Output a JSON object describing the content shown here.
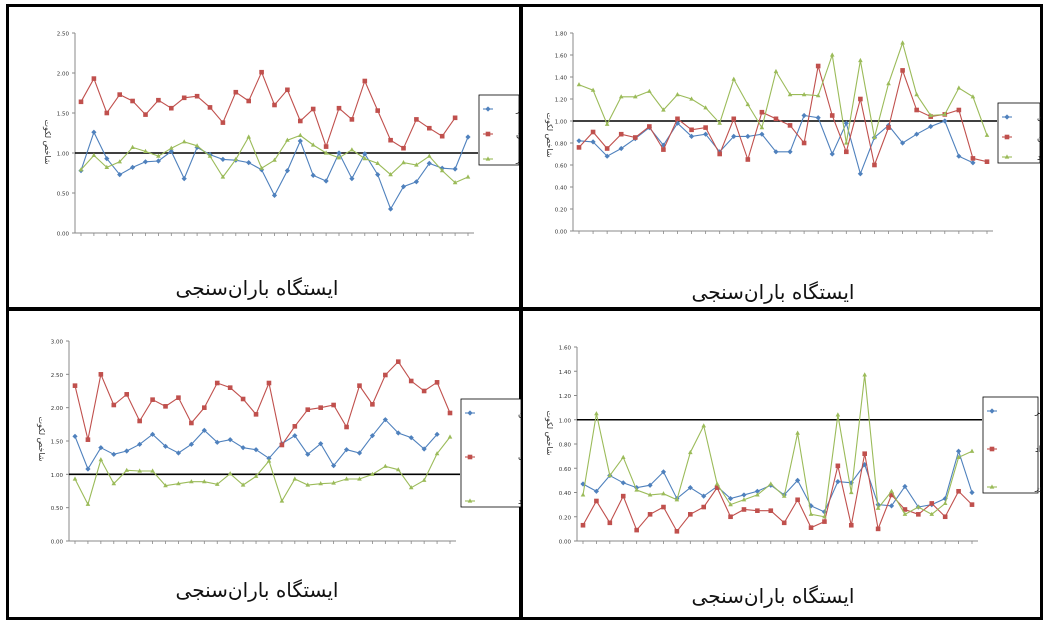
{
  "chart_data": [
    {
      "type": "line",
      "ylabel": "شاخص لکوت",
      "xlabel": "ایستگاه باران‌سنجی",
      "ylim": [
        0,
        2.5
      ],
      "yticks": [
        "0.00",
        "0.50",
        "1.00",
        "1.50",
        "2.00",
        "2.50"
      ],
      "reference_line": 1.0,
      "legend_position": "right",
      "series": [
        {
          "name": "مهر",
          "color": "#4f81bd",
          "values": [
            0.78,
            1.26,
            0.93,
            0.73,
            0.82,
            0.89,
            0.9,
            1.02,
            0.68,
            1.07,
            0.98,
            0.92,
            0.91,
            0.88,
            0.79,
            0.47,
            0.78,
            1.15,
            0.72,
            0.65,
            1.0,
            0.68,
            0.99,
            0.73,
            0.3,
            0.58,
            0.64,
            0.87,
            0.81,
            0.8,
            1.2
          ]
        },
        {
          "name": "آبان",
          "color": "#c0504d",
          "values": [
            1.64,
            1.93,
            1.5,
            1.73,
            1.65,
            1.48,
            1.66,
            1.56,
            1.69,
            1.71,
            1.57,
            1.38,
            1.76,
            1.65,
            2.01,
            1.6,
            1.79,
            1.4,
            1.55,
            1.08,
            1.56,
            1.42,
            1.9,
            1.53,
            1.16,
            1.06,
            1.42,
            1.31,
            1.21,
            1.44,
            null
          ]
        },
        {
          "name": "آذر",
          "color": "#9bbb59",
          "values": [
            0.79,
            0.97,
            0.82,
            0.89,
            1.07,
            1.02,
            0.96,
            1.06,
            1.14,
            1.09,
            0.96,
            0.7,
            0.92,
            1.2,
            0.81,
            0.91,
            1.16,
            1.22,
            1.1,
            1.0,
            0.94,
            1.04,
            0.93,
            0.87,
            0.73,
            0.88,
            0.85,
            0.96,
            0.78,
            0.63,
            0.7
          ]
        }
      ]
    },
    {
      "type": "line",
      "ylabel": "شاخص لکوت",
      "xlabel": "ایستگاه باران‌سنجی",
      "ylim": [
        0,
        1.8
      ],
      "yticks": [
        "0.00",
        "0.20",
        "0.40",
        "0.60",
        "0.80",
        "1.00",
        "1.20",
        "1.40",
        "1.60",
        "1.80"
      ],
      "reference_line": 1.0,
      "legend_position": "right",
      "series": [
        {
          "name": "دی",
          "color": "#4f81bd",
          "values": [
            0.82,
            0.81,
            0.68,
            0.75,
            0.84,
            0.94,
            0.78,
            0.98,
            0.86,
            0.88,
            0.72,
            0.86,
            0.86,
            0.88,
            0.72,
            0.72,
            1.05,
            1.03,
            0.7,
            0.98,
            0.52,
            0.85,
            0.96,
            0.8,
            0.88,
            0.95,
            1.0,
            0.68,
            0.62
          ]
        },
        {
          "name": "بهمن",
          "color": "#c0504d",
          "values": [
            0.76,
            0.9,
            0.75,
            0.88,
            0.85,
            0.95,
            0.74,
            1.02,
            0.92,
            0.94,
            0.7,
            1.02,
            0.65,
            1.08,
            1.02,
            0.96,
            0.8,
            1.5,
            1.05,
            0.72,
            1.2,
            0.6,
            0.94,
            1.46,
            1.1,
            1.04,
            1.06,
            1.1,
            0.66,
            0.63
          ]
        },
        {
          "name": "اسفند",
          "color": "#9bbb59",
          "values": [
            1.33,
            1.28,
            0.97,
            1.22,
            1.22,
            1.27,
            1.1,
            1.24,
            1.2,
            1.12,
            0.98,
            1.38,
            1.15,
            0.94,
            1.45,
            1.24,
            1.24,
            1.23,
            1.6,
            0.8,
            1.55,
            0.85,
            1.34,
            1.71,
            1.24,
            1.05,
            1.06,
            1.3,
            1.22,
            0.87
          ]
        }
      ]
    },
    {
      "type": "line",
      "ylabel": "شاخص لکوت",
      "xlabel": "ایستگاه باران‌سنجی",
      "ylim": [
        0,
        3.0
      ],
      "yticks": [
        "0.00",
        "0.50",
        "1.00",
        "1.50",
        "2.00",
        "2.50",
        "3.00"
      ],
      "reference_line": 1.0,
      "legend_position": "right",
      "series": [
        {
          "name": "فروردین",
          "color": "#4f81bd",
          "values": [
            1.57,
            1.08,
            1.4,
            1.3,
            1.35,
            1.45,
            1.6,
            1.42,
            1.32,
            1.45,
            1.66,
            1.48,
            1.52,
            1.4,
            1.37,
            1.24,
            1.46,
            1.58,
            1.3,
            1.46,
            1.13,
            1.37,
            1.32,
            1.58,
            1.82,
            1.62,
            1.55,
            1.38,
            1.6
          ]
        },
        {
          "name": "اردیبهشت",
          "color": "#c0504d",
          "values": [
            2.33,
            1.52,
            2.5,
            2.04,
            2.2,
            1.8,
            2.12,
            2.02,
            2.15,
            1.77,
            2.0,
            2.37,
            2.3,
            2.13,
            1.9,
            2.37,
            1.44,
            1.72,
            1.97,
            2.0,
            2.04,
            1.71,
            2.33,
            2.05,
            2.49,
            2.69,
            2.4,
            2.25,
            2.38,
            1.92
          ]
        },
        {
          "name": "خرداد",
          "color": "#9bbb59",
          "values": [
            0.93,
            0.55,
            1.22,
            0.86,
            1.06,
            1.05,
            1.05,
            0.83,
            0.86,
            0.89,
            0.89,
            0.85,
            1.01,
            0.84,
            0.97,
            1.2,
            0.6,
            0.93,
            0.84,
            0.86,
            0.87,
            0.93,
            0.93,
            1.0,
            1.12,
            1.07,
            0.8,
            0.91,
            1.31,
            1.56
          ]
        }
      ]
    },
    {
      "type": "line",
      "ylabel": "شاخص لکوت",
      "xlabel": "ایستگاه باران‌سنجی",
      "ylim": [
        0,
        1.6
      ],
      "yticks": [
        "0.00",
        "0.20",
        "0.40",
        "0.60",
        "0.80",
        "1.00",
        "1.20",
        "1.40",
        "1.60"
      ],
      "reference_line": 1.0,
      "legend_position": "right",
      "series": [
        {
          "name": "تیر",
          "color": "#4f81bd",
          "values": [
            0.47,
            0.41,
            0.54,
            0.48,
            0.44,
            0.46,
            0.57,
            0.35,
            0.44,
            0.37,
            0.45,
            0.35,
            0.38,
            0.41,
            0.46,
            0.38,
            0.5,
            0.29,
            0.24,
            0.49,
            0.48,
            0.63,
            0.3,
            0.29,
            0.45,
            0.28,
            0.3,
            0.35,
            0.74,
            0.4
          ]
        },
        {
          "name": "مرداد",
          "color": "#c0504d",
          "values": [
            0.13,
            0.33,
            0.15,
            0.37,
            0.09,
            0.22,
            0.28,
            0.08,
            0.22,
            0.28,
            0.44,
            0.2,
            0.26,
            0.25,
            0.25,
            0.15,
            0.34,
            0.11,
            0.16,
            0.62,
            0.13,
            0.72,
            0.1,
            0.38,
            0.26,
            0.22,
            0.31,
            0.2,
            0.41,
            0.3
          ]
        },
        {
          "name": "شهریور",
          "color": "#9bbb59",
          "values": [
            0.38,
            1.05,
            0.54,
            0.69,
            0.42,
            0.38,
            0.39,
            0.34,
            0.73,
            0.95,
            0.47,
            0.3,
            0.34,
            0.38,
            0.47,
            0.37,
            0.89,
            0.22,
            0.2,
            1.04,
            0.4,
            1.37,
            0.27,
            0.41,
            0.22,
            0.28,
            0.22,
            0.31,
            0.69,
            0.74
          ]
        }
      ]
    }
  ]
}
